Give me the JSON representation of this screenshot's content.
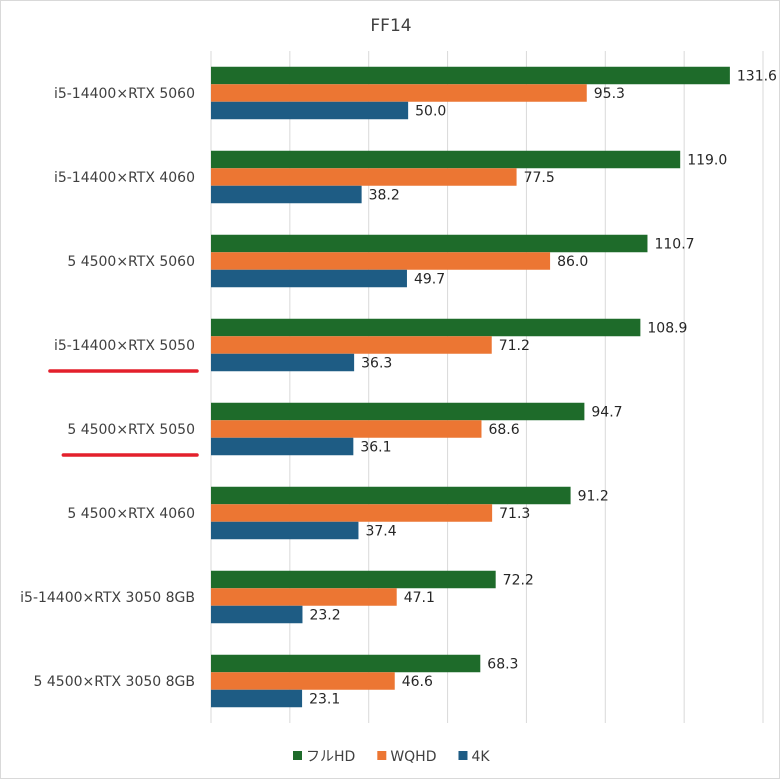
{
  "chart_data": {
    "type": "bar",
    "orientation": "horizontal",
    "title": "FF14",
    "categories": [
      "i5-14400×RTX 5060",
      "i5-14400×RTX 4060",
      "5 4500×RTX 5060",
      "i5-14400×RTX 5050",
      "5 4500×RTX 5050",
      "5 4500×RTX 4060",
      "i5-14400×RTX 3050 8GB",
      "5 4500×RTX 3050 8GB"
    ],
    "series": [
      {
        "name": "フルHD",
        "color": "#1e6b2a",
        "values": [
          131.6,
          119.0,
          110.7,
          108.9,
          94.7,
          91.2,
          72.2,
          68.3
        ]
      },
      {
        "name": "WQHD",
        "color": "#ec7633",
        "values": [
          95.3,
          77.5,
          86.0,
          71.2,
          68.6,
          71.3,
          47.1,
          46.6
        ]
      },
      {
        "name": "4K",
        "color": "#1e5c84",
        "values": [
          50.0,
          38.2,
          49.7,
          36.3,
          36.1,
          37.4,
          23.2,
          23.1
        ]
      }
    ],
    "xlim": [
      0,
      140
    ],
    "grid": true,
    "legend_position": "bottom",
    "highlighted_categories": [
      "i5-14400×RTX 5050",
      "5 4500×RTX 5050"
    ],
    "highlight_color": "#e3202c"
  }
}
